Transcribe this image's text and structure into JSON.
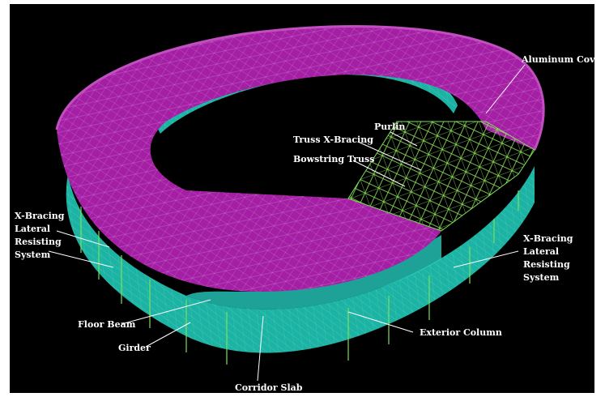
{
  "colors": {
    "background": "#000000",
    "roof": "#a51fa5",
    "roof_edge": "#c24ec2",
    "truss_lines": "#b8d48a",
    "corridor": "#1bb3a6",
    "corridor_light": "#26c9bb",
    "steel": "#7be05a",
    "label": "#ffffff"
  },
  "labels": {
    "aluminum_cover": "Aluminum Cover",
    "purlin": "Purlin",
    "truss_x_bracing": "Truss X-Bracing",
    "bowstring_truss": "Bowstring Truss",
    "xbracing_left": [
      "X-Bracing",
      "Lateral",
      "Resisting",
      "System"
    ],
    "xbracing_right": [
      "X-Bracing",
      "Lateral",
      "Resisting",
      "System"
    ],
    "floor_beam": "Floor Beam",
    "girder": "Girder",
    "corridor_slab": "Corridor Slab",
    "exterior_column": "Exterior Column"
  }
}
